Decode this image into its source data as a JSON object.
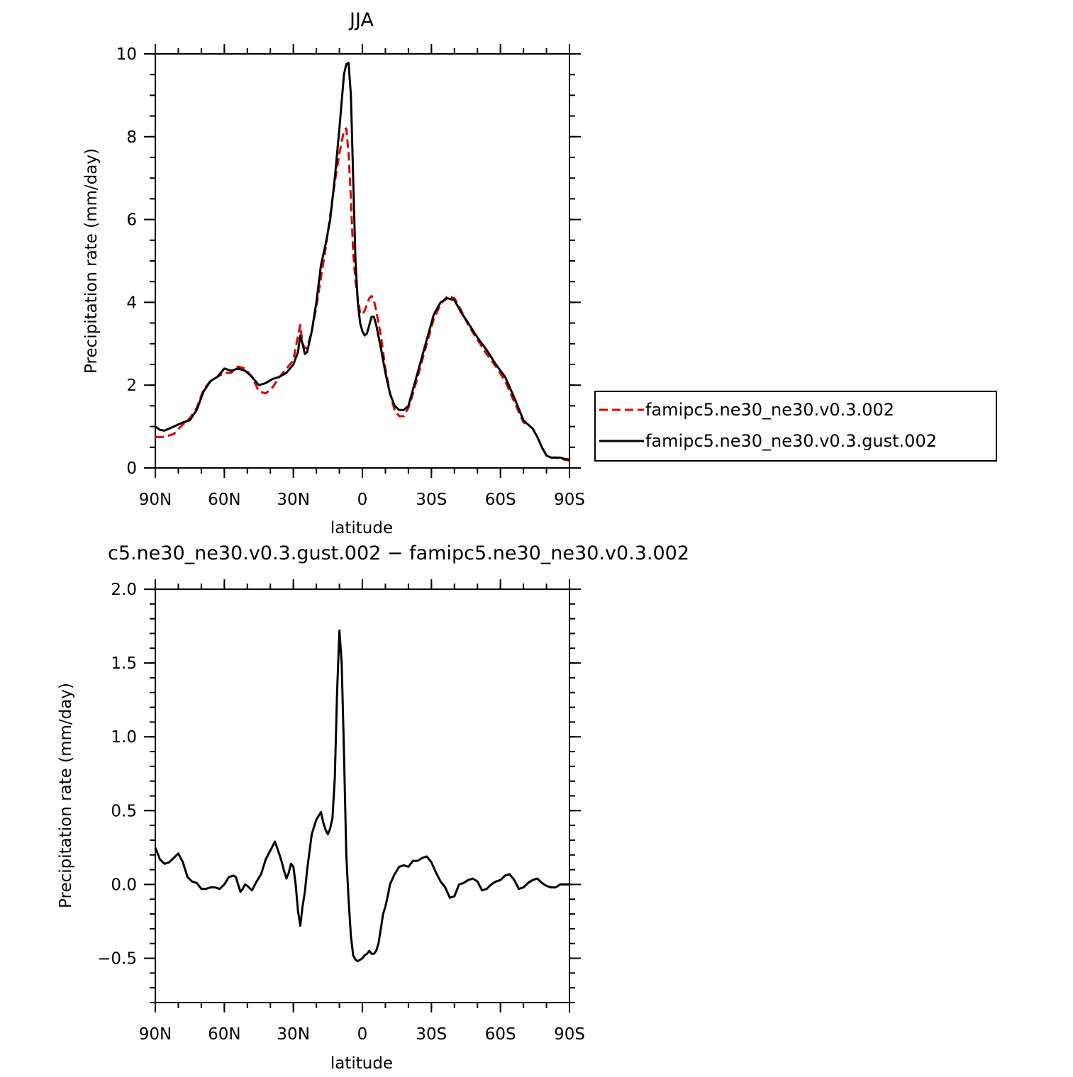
{
  "chart_data": [
    {
      "type": "line",
      "title": "JJA",
      "xlabel": "latitude",
      "ylabel": "Precipitation rate (mm/day)",
      "xlim": [
        90,
        -90
      ],
      "ylim": [
        0,
        10
      ],
      "x_ticks": [
        90,
        60,
        30,
        0,
        -30,
        -60,
        -90
      ],
      "x_tick_labels": [
        "90N",
        "60N",
        "30N",
        "0",
        "30S",
        "60S",
        "90S"
      ],
      "y_ticks": [
        0,
        2,
        4,
        6,
        8,
        10
      ],
      "y_tick_labels": [
        "0",
        "2",
        "4",
        "6",
        "8",
        "10"
      ],
      "legend_position": "right",
      "series": [
        {
          "name": "famipc5.ne30_ne30.v0.3.002",
          "color": "#dd0000",
          "style": "dashed",
          "x": [
            90,
            86,
            82,
            78,
            75,
            72,
            69,
            66,
            63,
            60,
            57,
            54,
            51,
            48,
            45,
            42,
            39,
            36,
            33,
            30,
            28,
            27,
            26,
            25,
            24,
            22,
            20,
            18,
            16,
            14,
            12,
            10,
            8,
            7,
            6,
            5,
            4,
            3,
            2,
            1,
            0,
            -1,
            -2,
            -3,
            -4,
            -5,
            -6,
            -8,
            -10,
            -12,
            -14,
            -16,
            -18,
            -20,
            -22,
            -25,
            -28,
            -31,
            -34,
            -37,
            -40,
            -43,
            -46,
            -50,
            -54,
            -58,
            -62,
            -66,
            -70,
            -72,
            -74,
            -76,
            -78,
            -80,
            -82,
            -84,
            -86,
            -88,
            -90
          ],
          "y": [
            0.75,
            0.75,
            0.82,
            1.05,
            1.2,
            1.45,
            1.9,
            2.1,
            2.2,
            2.3,
            2.3,
            2.45,
            2.4,
            2.2,
            1.85,
            1.8,
            1.95,
            2.2,
            2.4,
            2.6,
            3.2,
            3.45,
            3.0,
            2.9,
            2.9,
            3.3,
            3.9,
            4.6,
            5.3,
            6.1,
            6.9,
            7.6,
            8.15,
            8.2,
            7.6,
            6.5,
            5.2,
            4.5,
            4.1,
            3.75,
            3.7,
            3.8,
            3.95,
            4.1,
            4.15,
            4.05,
            3.8,
            3.2,
            2.4,
            1.8,
            1.4,
            1.25,
            1.25,
            1.45,
            1.8,
            2.4,
            3.0,
            3.6,
            3.95,
            4.15,
            4.1,
            3.8,
            3.45,
            3.1,
            2.75,
            2.45,
            2.1,
            1.6,
            1.1,
            1.05,
            0.95,
            0.75,
            0.5,
            0.3,
            0.25,
            0.25,
            0.22,
            0.2,
            0.18
          ]
        },
        {
          "name": "famipc5.ne30_ne30.v0.3.gust.002",
          "color": "#000000",
          "style": "solid",
          "x": [
            90,
            88,
            86,
            84,
            82,
            78,
            75,
            72,
            69,
            66,
            63,
            60,
            57,
            54,
            51,
            48,
            45,
            42,
            39,
            36,
            33,
            30,
            28,
            27,
            26,
            25,
            24,
            22,
            20,
            18,
            16,
            14,
            12,
            10,
            8,
            7,
            6,
            5,
            4,
            3,
            2,
            1,
            0,
            -1,
            -2,
            -3,
            -4,
            -5,
            -6,
            -8,
            -10,
            -12,
            -14,
            -16,
            -18,
            -20,
            -22,
            -25,
            -28,
            -31,
            -34,
            -37,
            -40,
            -43,
            -46,
            -50,
            -54,
            -58,
            -62,
            -66,
            -70,
            -72,
            -74,
            -76,
            -78,
            -80,
            -82,
            -84,
            -86,
            -88,
            -90
          ],
          "y": [
            1.0,
            0.92,
            0.9,
            0.95,
            1.0,
            1.1,
            1.15,
            1.4,
            1.85,
            2.1,
            2.2,
            2.4,
            2.35,
            2.4,
            2.35,
            2.2,
            2.0,
            2.05,
            2.15,
            2.2,
            2.3,
            2.5,
            2.8,
            3.2,
            3.0,
            2.75,
            2.8,
            3.3,
            4.0,
            4.9,
            5.4,
            6.0,
            7.0,
            8.2,
            9.5,
            9.75,
            9.78,
            9.0,
            7.0,
            5.0,
            4.0,
            3.5,
            3.3,
            3.2,
            3.25,
            3.45,
            3.65,
            3.65,
            3.45,
            2.9,
            2.3,
            1.8,
            1.5,
            1.4,
            1.4,
            1.5,
            1.9,
            2.5,
            3.1,
            3.7,
            4.0,
            4.1,
            4.05,
            3.75,
            3.5,
            3.15,
            2.85,
            2.5,
            2.2,
            1.7,
            1.15,
            1.05,
            0.95,
            0.75,
            0.5,
            0.3,
            0.25,
            0.25,
            0.25,
            0.22,
            0.2
          ]
        }
      ]
    },
    {
      "type": "line",
      "title": "c5.ne30_ne30.v0.3.gust.002 − famipc5.ne30_ne30.v0.3.002",
      "xlabel": "latitude",
      "ylabel": "Precipitation rate (mm/day)",
      "xlim": [
        90,
        -90
      ],
      "ylim": [
        -0.8,
        2.0
      ],
      "x_ticks": [
        90,
        60,
        30,
        0,
        -30,
        -60,
        -90
      ],
      "x_tick_labels": [
        "90N",
        "60N",
        "30N",
        "0",
        "30S",
        "60S",
        "90S"
      ],
      "y_ticks": [
        -0.5,
        0.0,
        0.5,
        1.0,
        1.5,
        2.0
      ],
      "y_tick_labels": [
        "−0.5",
        "0.0",
        "0.5",
        "1.0",
        "1.5",
        "2.0"
      ],
      "series": [
        {
          "name": "",
          "color": "#000000",
          "style": "solid",
          "x": [
            90,
            88,
            86,
            84,
            82,
            80,
            78,
            76,
            74,
            72,
            70,
            68,
            66,
            64,
            62,
            60,
            58,
            56,
            55,
            54,
            53,
            52,
            51,
            50,
            48,
            46,
            44,
            42,
            40,
            38,
            36,
            35,
            34,
            33,
            32,
            31,
            30,
            29,
            28,
            27,
            26,
            25,
            24,
            22,
            20,
            18,
            17,
            16,
            15,
            14,
            13,
            12,
            11,
            10,
            9,
            8,
            7,
            6,
            5,
            4,
            3,
            2,
            1,
            0,
            -1,
            -2,
            -3,
            -4,
            -5,
            -6,
            -7,
            -8,
            -9,
            -10,
            -11,
            -12,
            -14,
            -16,
            -18,
            -20,
            -22,
            -24,
            -26,
            -28,
            -30,
            -32,
            -34,
            -36,
            -38,
            -40,
            -42,
            -44,
            -46,
            -48,
            -50,
            -52,
            -54,
            -56,
            -58,
            -60,
            -62,
            -64,
            -66,
            -68,
            -70,
            -72,
            -74,
            -76,
            -78,
            -80,
            -82,
            -84,
            -86,
            -88,
            -90
          ],
          "y": [
            0.25,
            0.17,
            0.14,
            0.15,
            0.18,
            0.21,
            0.15,
            0.05,
            0.02,
            0.01,
            -0.03,
            -0.03,
            -0.02,
            -0.02,
            -0.03,
            0.0,
            0.05,
            0.06,
            0.05,
            0.0,
            -0.05,
            -0.03,
            0.0,
            -0.01,
            -0.04,
            0.02,
            0.07,
            0.17,
            0.23,
            0.29,
            0.2,
            0.15,
            0.09,
            0.04,
            0.08,
            0.14,
            0.12,
            0.0,
            -0.18,
            -0.28,
            -0.15,
            -0.05,
            0.1,
            0.34,
            0.44,
            0.49,
            0.42,
            0.37,
            0.34,
            0.38,
            0.45,
            0.72,
            1.3,
            1.72,
            1.5,
            0.9,
            0.2,
            -0.1,
            -0.35,
            -0.48,
            -0.51,
            -0.52,
            -0.51,
            -0.5,
            -0.48,
            -0.47,
            -0.45,
            -0.47,
            -0.47,
            -0.45,
            -0.4,
            -0.3,
            -0.2,
            -0.15,
            -0.08,
            0.0,
            0.07,
            0.12,
            0.13,
            0.12,
            0.16,
            0.16,
            0.18,
            0.19,
            0.15,
            0.08,
            0.02,
            -0.02,
            -0.09,
            -0.08,
            0.0,
            0.01,
            0.03,
            0.04,
            0.02,
            -0.04,
            -0.03,
            0.0,
            0.02,
            0.03,
            0.06,
            0.07,
            0.03,
            -0.03,
            -0.02,
            0.01,
            0.03,
            0.04,
            0.01,
            -0.01,
            -0.02,
            -0.02,
            0.0,
            0.0,
            0.0
          ]
        }
      ]
    }
  ]
}
